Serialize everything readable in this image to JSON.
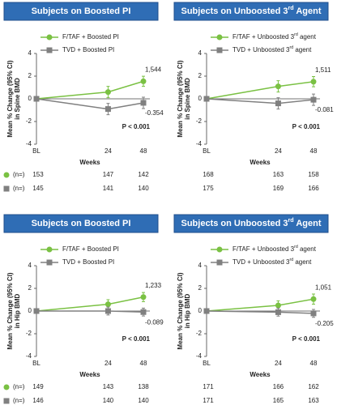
{
  "chart_data": [
    {
      "type": "line",
      "title": "Subjects on Boosted PI",
      "y_label": [
        "Mean % Change (95% CI)",
        "in Spine BMD"
      ],
      "x_label": "Weeks",
      "categories": [
        "BL",
        "24",
        "48"
      ],
      "ylim": [
        -4,
        4
      ],
      "yticks": [
        -4,
        -2,
        0,
        2,
        4
      ],
      "series": [
        {
          "name": "F/TAF + Boosted PI",
          "color": "#7ac143",
          "values": [
            0,
            0.6,
            1.544
          ],
          "errors": [
            null,
            0.5,
            0.45
          ],
          "value_labels": [
            null,
            null,
            "1,544"
          ],
          "n": [
            153,
            147,
            142
          ]
        },
        {
          "name": "TVD + Boosted PI",
          "color": "#808080",
          "values": [
            0,
            -0.9,
            -0.354
          ],
          "errors": [
            null,
            0.5,
            0.5
          ],
          "value_labels": [
            null,
            null,
            "-0.354"
          ],
          "n": [
            145,
            141,
            140
          ]
        }
      ],
      "annotation": "P < 0.001",
      "n_label": "(n=)"
    },
    {
      "type": "line",
      "title": "Subjects on Unboosted 3rd Agent",
      "y_label": [
        "Mean % Change (95% CI)",
        "in Spine BMD"
      ],
      "x_label": "Weeks",
      "categories": [
        "BL",
        "24",
        "48"
      ],
      "ylim": [
        -4,
        4
      ],
      "yticks": [
        -4,
        -2,
        0,
        2,
        4
      ],
      "series": [
        {
          "name": "F/TAF + Unboosted 3rd agent",
          "color": "#7ac143",
          "values": [
            0,
            1.1,
            1.511
          ],
          "errors": [
            null,
            0.5,
            0.45
          ],
          "value_labels": [
            null,
            null,
            "1,511"
          ],
          "n": [
            168,
            163,
            158
          ]
        },
        {
          "name": "TVD + Unboosted 3rd agent",
          "color": "#808080",
          "values": [
            0,
            -0.4,
            -0.081
          ],
          "errors": [
            null,
            0.5,
            0.5
          ],
          "value_labels": [
            null,
            null,
            "-0.081"
          ],
          "n": [
            175,
            169,
            166
          ]
        }
      ],
      "annotation": "P < 0.001"
    },
    {
      "type": "line",
      "title": "Subjects on Boosted PI",
      "y_label": [
        "Mean % Change (95% CI)",
        "in Hip BMD"
      ],
      "x_label": "Weeks",
      "categories": [
        "BL",
        "24",
        "48"
      ],
      "ylim": [
        -4,
        4
      ],
      "yticks": [
        -4,
        -2,
        0,
        2,
        4
      ],
      "series": [
        {
          "name": "F/TAF + Boosted PI",
          "color": "#7ac143",
          "values": [
            0,
            0.6,
            1.233
          ],
          "errors": [
            null,
            0.4,
            0.4
          ],
          "value_labels": [
            null,
            null,
            "1,233"
          ],
          "n": [
            149,
            143,
            138
          ]
        },
        {
          "name": "TVD + Boosted PI",
          "color": "#808080",
          "values": [
            0,
            0,
            -0.089
          ],
          "errors": [
            null,
            0.35,
            0.35
          ],
          "value_labels": [
            null,
            null,
            "-0.089"
          ],
          "n": [
            146,
            140,
            140
          ]
        }
      ],
      "annotation": "P < 0.001",
      "n_label": "(n=)"
    },
    {
      "type": "line",
      "title": "Subjects on Unboosted 3rd Agent",
      "y_label": [
        "Mean % Change (95% CI)",
        "in Hip BMD"
      ],
      "x_label": "Weeks",
      "categories": [
        "BL",
        "24",
        "48"
      ],
      "ylim": [
        -4,
        4
      ],
      "yticks": [
        -4,
        -2,
        0,
        2,
        4
      ],
      "series": [
        {
          "name": "F/TAF + Unboosted 3rd agent",
          "color": "#7ac143",
          "values": [
            0,
            0.5,
            1.051
          ],
          "errors": [
            null,
            0.4,
            0.45
          ],
          "value_labels": [
            null,
            null,
            "1,051"
          ],
          "n": [
            171,
            166,
            162
          ]
        },
        {
          "name": "TVD + Unboosted 3rd agent",
          "color": "#808080",
          "values": [
            0,
            -0.1,
            -0.205
          ],
          "errors": [
            null,
            0.35,
            0.35
          ],
          "value_labels": [
            null,
            null,
            "-0.205"
          ],
          "n": [
            171,
            165,
            163
          ]
        }
      ],
      "annotation": "P < 0.001"
    }
  ]
}
